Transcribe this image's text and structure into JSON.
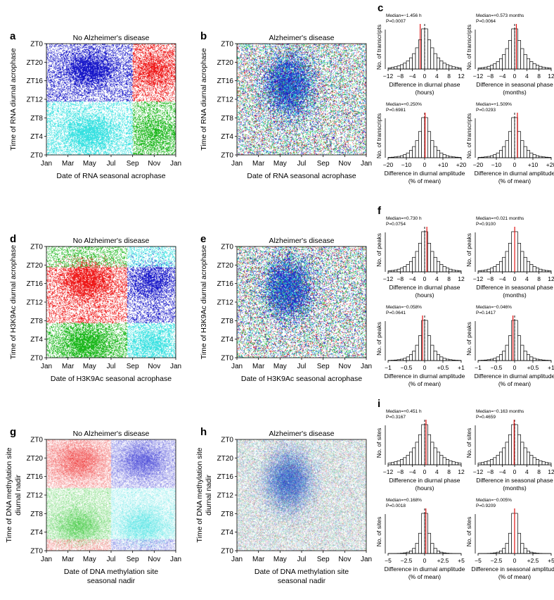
{
  "rows": [
    {
      "scatter_left": {
        "letter": "a",
        "title": "No Alzheimer's disease",
        "x_label": "Date of RNA seasonal acrophase",
        "y_label": [
          "Time of RNA diurnal acrophase"
        ],
        "style": "nad",
        "quad": [
          "#1010c8",
          "#ee1010",
          "#30e0e0",
          "#10b410"
        ],
        "y_split": 11.5,
        "x_split": 8.0,
        "shift_month": 0,
        "ybreak": false
      },
      "scatter_right": {
        "letter": "b",
        "title": "Alzheimer's disease",
        "x_label": "Date of RNA seasonal acrophase",
        "y_label": [
          "Time of RNA diurnal acrophase"
        ],
        "style": "ad"
      },
      "hist_letter": "c",
      "hists": [
        {
          "median_text": "Median=−1.456 h",
          "p_text": "P=0.0007",
          "ylabel": "No. of transcripts",
          "xlabel": [
            "Difference in diurnal phase",
            "(hours)"
          ],
          "ticks": [
            "−12",
            "−8",
            "−4",
            "0",
            "4",
            "8",
            "12"
          ],
          "xmin": -12,
          "xmax": 12,
          "sigma": 3.6,
          "nbins": 24,
          "median": -1.456
        },
        {
          "median_text": "Median=+0.573 months",
          "p_text": "P=0.0064",
          "ylabel": "No. of transcripts",
          "xlabel": [
            "Difference in seasonal phase",
            "(months)"
          ],
          "ticks": [
            "−12",
            "−8",
            "−4",
            "0",
            "4",
            "8",
            "12"
          ],
          "xmin": -12,
          "xmax": 12,
          "sigma": 3.4,
          "nbins": 24,
          "median": 0.573
        },
        {
          "median_text": "Median=+0.250%",
          "p_text": "P=0.6981",
          "ylabel": "No. of transcripts",
          "xlabel": [
            "Difference in diurnal amplitude",
            "(% of mean)"
          ],
          "ticks": [
            "−20",
            "−10",
            "0",
            "+10",
            "+20"
          ],
          "xmin": -20,
          "xmax": 20,
          "sigma": 4.5,
          "nbins": 24,
          "median": 0.25
        },
        {
          "median_text": "Median=+1.509%",
          "p_text": "P=0.0293",
          "ylabel": "No. of transcripts",
          "xlabel": [
            "Difference in diurnal amplitude",
            "(% of mean)"
          ],
          "ticks": [
            "−20",
            "−10",
            "0",
            "+10",
            "+20"
          ],
          "xmin": -20,
          "xmax": 20,
          "sigma": 4.5,
          "nbins": 24,
          "median": 1.509
        }
      ]
    },
    {
      "scatter_left": {
        "letter": "d",
        "title": "No Alzheimer's disease",
        "x_label": "Date of H3K9Ac seasonal acrophase",
        "y_label": [
          "Time of H3K9Ac diurnal acrophase"
        ],
        "style": "nad",
        "quad": [
          "#ee1010",
          "#1010c8",
          "#10b410",
          "#30e0e0"
        ],
        "y_split": 7.5,
        "x_split": 7.5,
        "shift_month": 0,
        "ybreak": true,
        "y_upper": 19.5
      },
      "scatter_right": {
        "letter": "e",
        "title": "Alzheimer's disease",
        "x_label": "Date of H3K9Ac seasonal acrophase",
        "y_label": [
          "Time of H3K9Ac diurnal acrophase"
        ],
        "style": "ad"
      },
      "hist_letter": "f",
      "hists": [
        {
          "median_text": "Median=+0.730 h",
          "p_text": "P=0.0754",
          "ylabel": "No. of peaks",
          "xlabel": [
            "Difference in diurnal phase",
            "(hours)"
          ],
          "ticks": [
            "−12",
            "−8",
            "−4",
            "0",
            "4",
            "8",
            "12"
          ],
          "xmin": -12,
          "xmax": 12,
          "sigma": 3.4,
          "nbins": 24,
          "median": 0.73
        },
        {
          "median_text": "Median=+0.021 months",
          "p_text": "P=0.9100",
          "ylabel": "No. of peaks",
          "xlabel": [
            "Difference in seasonal phase",
            "(months)"
          ],
          "ticks": [
            "−12",
            "−8",
            "−4",
            "0",
            "4",
            "8",
            "12"
          ],
          "xmin": -12,
          "xmax": 12,
          "sigma": 3.4,
          "nbins": 24,
          "median": 0.021
        },
        {
          "median_text": "Median=−0.058%",
          "p_text": "P=0.0641",
          "ylabel": "No. of peaks",
          "xlabel": [
            "Difference in diurnal amplitude",
            "(% of mean)"
          ],
          "ticks": [
            "−1",
            "−0.5",
            "0",
            "+0.5",
            "+1"
          ],
          "xmin": -1,
          "xmax": 1,
          "sigma": 0.2,
          "nbins": 24,
          "median": -0.058
        },
        {
          "median_text": "Median=−0.046%",
          "p_text": "P=0.1417",
          "ylabel": "No. of peaks",
          "xlabel": [
            "Difference in diurnal amplitude",
            "(% of mean)"
          ],
          "ticks": [
            "−1",
            "−0.5",
            "0",
            "+0.5",
            "+1"
          ],
          "xmin": -1,
          "xmax": 1,
          "sigma": 0.2,
          "nbins": 24,
          "median": -0.046
        }
      ]
    },
    {
      "scatter_left": {
        "letter": "g",
        "title": "No Alzheimer's disease",
        "x_label": [
          "Date of DNA methylation site",
          "seasonal nadir"
        ],
        "y_label": [
          "Time of DNA methylation site",
          "diurnal nadir"
        ],
        "style": "nadsmooth",
        "quad": [
          "#ee2020",
          "#2020d0",
          "#20c020",
          "#30e0e0"
        ],
        "y_split": 13.5,
        "x_split": 6.0,
        "shift_month": 0,
        "ybreak": true,
        "y_lower": 2.5
      },
      "scatter_right": {
        "letter": "h",
        "title": "Alzheimer's disease",
        "x_label": [
          "Date of DNA methylation site",
          "seasonal nadir"
        ],
        "y_label": [
          "Time of DNA methylation site",
          "diurnal nadir"
        ],
        "style": "adsmooth"
      },
      "hist_letter": "i",
      "hists": [
        {
          "median_text": "Median=+0.451 h",
          "p_text": "P=0.3167",
          "ylabel": "No. of sites",
          "xlabel": [
            "Difference in diurnal phase",
            "(hours)"
          ],
          "ticks": [
            "−12",
            "−8",
            "−4",
            "0",
            "4",
            "8",
            "12"
          ],
          "xmin": -12,
          "xmax": 12,
          "sigma": 4.0,
          "nbins": 24,
          "median": 0.451
        },
        {
          "median_text": "Median=−0.163 months",
          "p_text": "P=0.4659",
          "ylabel": "No. of sites",
          "xlabel": [
            "Difference in seasonal phase",
            "(months)"
          ],
          "ticks": [
            "−12",
            "−8",
            "−4",
            "0",
            "4",
            "8",
            "12"
          ],
          "xmin": -12,
          "xmax": 12,
          "sigma": 4.0,
          "nbins": 24,
          "median": -0.163
        },
        {
          "median_text": "Median=+0.168%",
          "p_text": "P=0.0018",
          "ylabel": "No. of sites",
          "xlabel": [
            "Difference in diurnal amplitude",
            "(% of mean)"
          ],
          "ticks": [
            "−5",
            "−2.5",
            "0",
            "+2.5",
            "+5"
          ],
          "xmin": -5,
          "xmax": 5,
          "sigma": 0.7,
          "nbins": 24,
          "median": 0.168
        },
        {
          "median_text": "Median=−0.005%",
          "p_text": "P=0.9209",
          "ylabel": "No. of sites",
          "xlabel": [
            "Difference in seasonal amplitude",
            "(% of mean)"
          ],
          "ticks": [
            "−5",
            "−2.5",
            "0",
            "+2.5",
            "+5"
          ],
          "xmin": -5,
          "xmax": 5,
          "sigma": 0.7,
          "nbins": 24,
          "median": -0.005
        }
      ]
    }
  ],
  "y_ticks": [
    "ZT0",
    "ZT20",
    "ZT16",
    "ZT12",
    "ZT8",
    "ZT4",
    "ZT0"
  ],
  "x_ticks": [
    "Jan",
    "Mar",
    "May",
    "Jul",
    "Sep",
    "Nov",
    "Jan"
  ],
  "chart_data": [
    {
      "type": "scatter",
      "panel": "a",
      "title": "No Alzheimer's disease",
      "xlabel": "Date of RNA seasonal acrophase",
      "ylabel": "Time of RNA diurnal acrophase",
      "xlim": [
        "Jan",
        "Jan"
      ],
      "ylim": [
        "ZT0",
        "ZT0"
      ]
    },
    {
      "type": "scatter",
      "panel": "b",
      "title": "Alzheimer's disease",
      "xlabel": "Date of RNA seasonal acrophase",
      "ylabel": "Time of RNA diurnal acrophase"
    },
    {
      "type": "bar",
      "panel": "c",
      "series": [
        {
          "name": "Difference in diurnal phase (hours)",
          "median": -1.456,
          "p": 0.0007,
          "xlim": [
            -12,
            12
          ]
        },
        {
          "name": "Difference in seasonal phase (months)",
          "median": 0.573,
          "p": 0.0064,
          "xlim": [
            -12,
            12
          ]
        },
        {
          "name": "Difference in diurnal amplitude (% of mean)",
          "median": 0.25,
          "p": 0.6981,
          "xlim": [
            -20,
            20
          ]
        },
        {
          "name": "Difference in diurnal amplitude (% of mean)",
          "median": 1.509,
          "p": 0.0293,
          "xlim": [
            -20,
            20
          ]
        }
      ]
    },
    {
      "type": "scatter",
      "panel": "d",
      "title": "No Alzheimer's disease",
      "xlabel": "Date of H3K9Ac seasonal acrophase",
      "ylabel": "Time of H3K9Ac diurnal acrophase"
    },
    {
      "type": "scatter",
      "panel": "e",
      "title": "Alzheimer's disease",
      "xlabel": "Date of H3K9Ac seasonal acrophase",
      "ylabel": "Time of H3K9Ac diurnal acrophase"
    },
    {
      "type": "bar",
      "panel": "f",
      "series": [
        {
          "name": "Difference in diurnal phase (hours)",
          "median": 0.73,
          "p": 0.0754,
          "xlim": [
            -12,
            12
          ]
        },
        {
          "name": "Difference in seasonal phase (months)",
          "median": 0.021,
          "p": 0.91,
          "xlim": [
            -12,
            12
          ]
        },
        {
          "name": "Difference in diurnal amplitude (% of mean)",
          "median": -0.058,
          "p": 0.0641,
          "xlim": [
            -1,
            1
          ]
        },
        {
          "name": "Difference in diurnal amplitude (% of mean)",
          "median": -0.046,
          "p": 0.1417,
          "xlim": [
            -1,
            1
          ]
        }
      ]
    },
    {
      "type": "scatter",
      "panel": "g",
      "title": "No Alzheimer's disease",
      "xlabel": "Date of DNA methylation site seasonal nadir",
      "ylabel": "Time of DNA methylation site diurnal nadir"
    },
    {
      "type": "scatter",
      "panel": "h",
      "title": "Alzheimer's disease",
      "xlabel": "Date of DNA methylation site seasonal nadir",
      "ylabel": "Time of DNA methylation site diurnal nadir"
    },
    {
      "type": "bar",
      "panel": "i",
      "series": [
        {
          "name": "Difference in diurnal phase (hours)",
          "median": 0.451,
          "p": 0.3167,
          "xlim": [
            -12,
            12
          ]
        },
        {
          "name": "Difference in seasonal phase (months)",
          "median": -0.163,
          "p": 0.4659,
          "xlim": [
            -12,
            12
          ]
        },
        {
          "name": "Difference in diurnal amplitude (% of mean)",
          "median": 0.168,
          "p": 0.0018,
          "xlim": [
            -5,
            5
          ]
        },
        {
          "name": "Difference in seasonal amplitude (% of mean)",
          "median": -0.005,
          "p": 0.9209,
          "xlim": [
            -5,
            5
          ]
        }
      ]
    }
  ]
}
